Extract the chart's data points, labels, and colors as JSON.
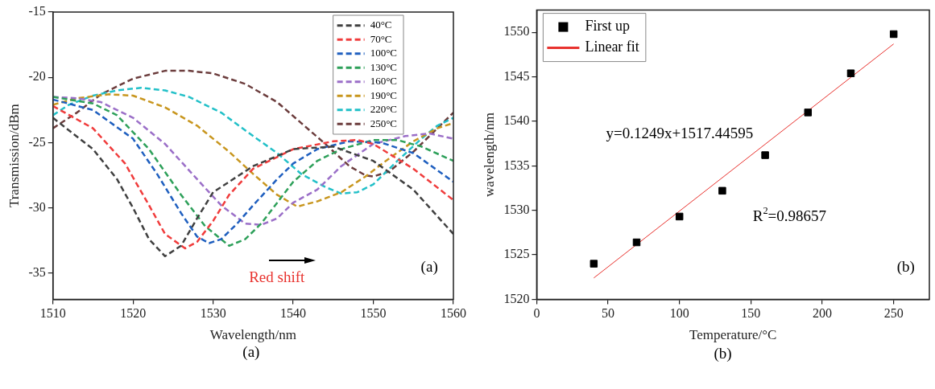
{
  "chart_data": [
    {
      "type": "line",
      "xlabel": "Wavelength/nm",
      "ylabel": "Transmission/dBm",
      "xlim": [
        1510,
        1560
      ],
      "xticks": [
        1510,
        1520,
        1530,
        1540,
        1550,
        1560
      ],
      "ylim": [
        -37,
        -15
      ],
      "yticks": [
        -35,
        -30,
        -25,
        -20,
        -15
      ],
      "grid": false,
      "legend": "top right",
      "line_style": "dashed",
      "annotations": [
        "(a)",
        "Red shift",
        "(a)"
      ],
      "series": [
        {
          "name": "40°C",
          "color": "#404040",
          "x": [
            1510,
            1515,
            1518,
            1520,
            1522,
            1524,
            1526,
            1528,
            1530,
            1535,
            1540,
            1545,
            1550,
            1555,
            1560
          ],
          "values": [
            -23.1,
            -25.5,
            -27.8,
            -30.0,
            -32.4,
            -33.7,
            -32.9,
            -30.8,
            -28.8,
            -26.8,
            -25.5,
            -25.3,
            -26.4,
            -28.6,
            -32.0
          ]
        },
        {
          "name": "70°C",
          "color": "#f03c3c",
          "x": [
            1510,
            1515,
            1519,
            1522,
            1524,
            1526.5,
            1528,
            1530,
            1532,
            1535,
            1540,
            1545,
            1548,
            1550,
            1555,
            1560
          ],
          "values": [
            -22.2,
            -23.9,
            -26.6,
            -29.8,
            -32.0,
            -33.1,
            -32.6,
            -31.0,
            -29.0,
            -27.0,
            -25.5,
            -24.9,
            -24.8,
            -25.1,
            -27.0,
            -29.4
          ]
        },
        {
          "name": "100°C",
          "color": "#1f5fbf",
          "x": [
            1510,
            1515,
            1520,
            1523,
            1526,
            1528,
            1529.5,
            1531,
            1533,
            1535,
            1538,
            1540,
            1543,
            1547,
            1551,
            1555,
            1560
          ],
          "values": [
            -21.7,
            -22.5,
            -24.7,
            -27.4,
            -30.4,
            -32.2,
            -32.7,
            -32.4,
            -31.2,
            -29.8,
            -27.8,
            -26.6,
            -25.5,
            -24.9,
            -25.0,
            -25.8,
            -28.0
          ]
        },
        {
          "name": "130°C",
          "color": "#2ea05a",
          "x": [
            1510,
            1515,
            1518,
            1522,
            1526,
            1529,
            1532,
            1534,
            1536,
            1538,
            1540,
            1543,
            1546,
            1550,
            1553,
            1556,
            1560
          ],
          "values": [
            -21.5,
            -22.0,
            -22.9,
            -25.5,
            -29.0,
            -31.4,
            -32.9,
            -32.4,
            -31.2,
            -29.6,
            -28.0,
            -26.4,
            -25.5,
            -24.8,
            -24.8,
            -25.3,
            -26.4
          ]
        },
        {
          "name": "160°C",
          "color": "#9b6fc8",
          "x": [
            1510,
            1513,
            1516,
            1520,
            1524,
            1528,
            1531,
            1534,
            1536,
            1538,
            1540,
            1543,
            1546,
            1550,
            1554,
            1557,
            1560
          ],
          "values": [
            -21.5,
            -21.6,
            -21.9,
            -23.1,
            -25.1,
            -27.8,
            -29.8,
            -31.2,
            -31.3,
            -30.8,
            -29.6,
            -28.6,
            -26.8,
            -25.1,
            -24.5,
            -24.3,
            -24.7
          ]
        },
        {
          "name": "190°C",
          "color": "#c8961e",
          "x": [
            1510,
            1513,
            1517,
            1520,
            1524,
            1528,
            1532,
            1535,
            1538,
            1540.5,
            1543,
            1546,
            1549,
            1552,
            1555,
            1558,
            1560
          ],
          "values": [
            -22.1,
            -21.6,
            -21.3,
            -21.4,
            -22.3,
            -23.7,
            -25.7,
            -27.4,
            -29.0,
            -29.9,
            -29.5,
            -28.8,
            -27.6,
            -26.2,
            -24.9,
            -23.9,
            -23.5
          ]
        },
        {
          "name": "220°C",
          "color": "#22c0c8",
          "x": [
            1510,
            1512,
            1515,
            1518,
            1521,
            1524,
            1527,
            1531,
            1535,
            1538,
            1541,
            1544,
            1546,
            1548,
            1550,
            1553,
            1556,
            1558,
            1560
          ],
          "values": [
            -22.9,
            -22.1,
            -21.4,
            -21.0,
            -20.8,
            -21.0,
            -21.5,
            -22.7,
            -24.5,
            -25.8,
            -27.4,
            -28.4,
            -28.9,
            -28.8,
            -28.2,
            -26.4,
            -24.7,
            -23.7,
            -23.1
          ]
        },
        {
          "name": "250°C",
          "color": "#6b3c3c",
          "x": [
            1510,
            1513,
            1516,
            1520,
            1524,
            1527,
            1530,
            1534,
            1538,
            1541,
            1544,
            1547,
            1549,
            1550,
            1552,
            1555,
            1558,
            1560
          ],
          "values": [
            -23.9,
            -22.7,
            -21.3,
            -20.1,
            -19.5,
            -19.5,
            -19.7,
            -20.5,
            -21.9,
            -23.5,
            -25.1,
            -26.8,
            -27.5,
            -27.6,
            -27.2,
            -25.7,
            -23.9,
            -22.7
          ]
        }
      ]
    },
    {
      "type": "scatter",
      "xlabel": "Temperature/°C",
      "ylabel": "wavelength/nm",
      "xlim": [
        0,
        275
      ],
      "xticks": [
        0,
        50,
        100,
        150,
        200,
        250
      ],
      "ylim": [
        1520,
        1552.5
      ],
      "yticks": [
        1520,
        1525,
        1530,
        1535,
        1540,
        1545,
        1550
      ],
      "grid": false,
      "legend": "top left",
      "annotations": [
        "y=0.1249x+1517.44595",
        "R$^{2}$=0.98657",
        "(b)",
        "(b)"
      ],
      "x": [
        40,
        70,
        100,
        130,
        160,
        190,
        220,
        250
      ],
      "series": [
        {
          "name": "First up",
          "color": "#000000",
          "marker": "square",
          "values": [
            1524.0,
            1526.4,
            1529.3,
            1532.2,
            1536.2,
            1541.0,
            1545.4,
            1549.8
          ]
        },
        {
          "name": "Linear fit",
          "type": "line",
          "color": "#e8322e",
          "marker": "none",
          "x": [
            40,
            250
          ],
          "values": [
            1522.4,
            1548.7
          ]
        }
      ]
    }
  ]
}
